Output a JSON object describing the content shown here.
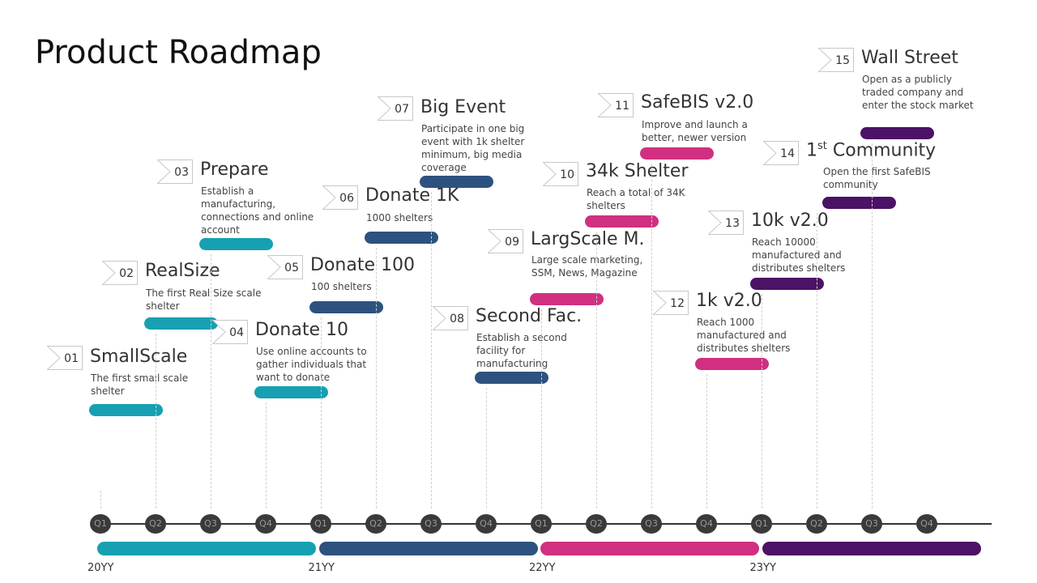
{
  "title": "Product Roadmap",
  "colors": {
    "year1": "#16a0b2",
    "year2": "#2d527f",
    "year3": "#d0307f",
    "year4": "#4b1265",
    "axis": "#333333",
    "quarter_dot": "#3a3a3a"
  },
  "timeline": {
    "quarters": [
      "Q1",
      "Q2",
      "Q3",
      "Q4",
      "Q1",
      "Q2",
      "Q3",
      "Q4",
      "Q1",
      "Q2",
      "Q3",
      "Q4",
      "Q1",
      "Q2",
      "Q3",
      "Q4"
    ],
    "years": [
      "20YY",
      "21YY",
      "22YY",
      "23YY"
    ]
  },
  "milestones": [
    {
      "num": "01",
      "title": "SmallScale",
      "desc": "The first small scale shelter",
      "quarter_index": 0
    },
    {
      "num": "02",
      "title": "RealSize",
      "desc": "The first Real Size scale shelter",
      "quarter_index": 1
    },
    {
      "num": "03",
      "title": "Prepare",
      "desc": "Establish a manufacturing, connections and online account",
      "quarter_index": 2
    },
    {
      "num": "04",
      "title": "Donate 10",
      "desc": "Use online accounts to gather individuals that want to donate",
      "quarter_index": 3
    },
    {
      "num": "05",
      "title": "Donate 100",
      "desc": "100 shelters",
      "quarter_index": 4
    },
    {
      "num": "06",
      "title": "Donate 1K",
      "desc": "1000 shelters",
      "quarter_index": 5
    },
    {
      "num": "07",
      "title": "Big Event",
      "desc": "Participate in one big event with 1k shelter minimum, big media coverage",
      "quarter_index": 6
    },
    {
      "num": "08",
      "title": "Second Fac.",
      "desc": "Establish a second facility for manufacturing",
      "quarter_index": 7
    },
    {
      "num": "09",
      "title": "LargScale M.",
      "desc": "Large scale marketing, SSM, News, Magazine",
      "quarter_index": 8
    },
    {
      "num": "10",
      "title": "34k Shelter",
      "desc": "Reach a total of 34K shelters",
      "quarter_index": 9
    },
    {
      "num": "11",
      "title": "SafeBIS v2.0",
      "desc": "Improve and launch a better, newer version",
      "quarter_index": 10
    },
    {
      "num": "12",
      "title": "1k v2.0",
      "desc": "Reach 1000 manufactured and distributes shelters",
      "quarter_index": 11
    },
    {
      "num": "13",
      "title": "10k v2.0",
      "desc": "Reach 10000 manufactured and distributes shelters",
      "quarter_index": 12
    },
    {
      "num": "14",
      "title": "1st Community",
      "title_base": "1",
      "title_sup": "st",
      "title_rest": " Community",
      "desc": "Open the first SafeBIS community",
      "quarter_index": 13
    },
    {
      "num": "15",
      "title": "Wall Street",
      "desc": "Open as a publicly traded company and enter the stock market",
      "quarter_index": 14
    }
  ]
}
